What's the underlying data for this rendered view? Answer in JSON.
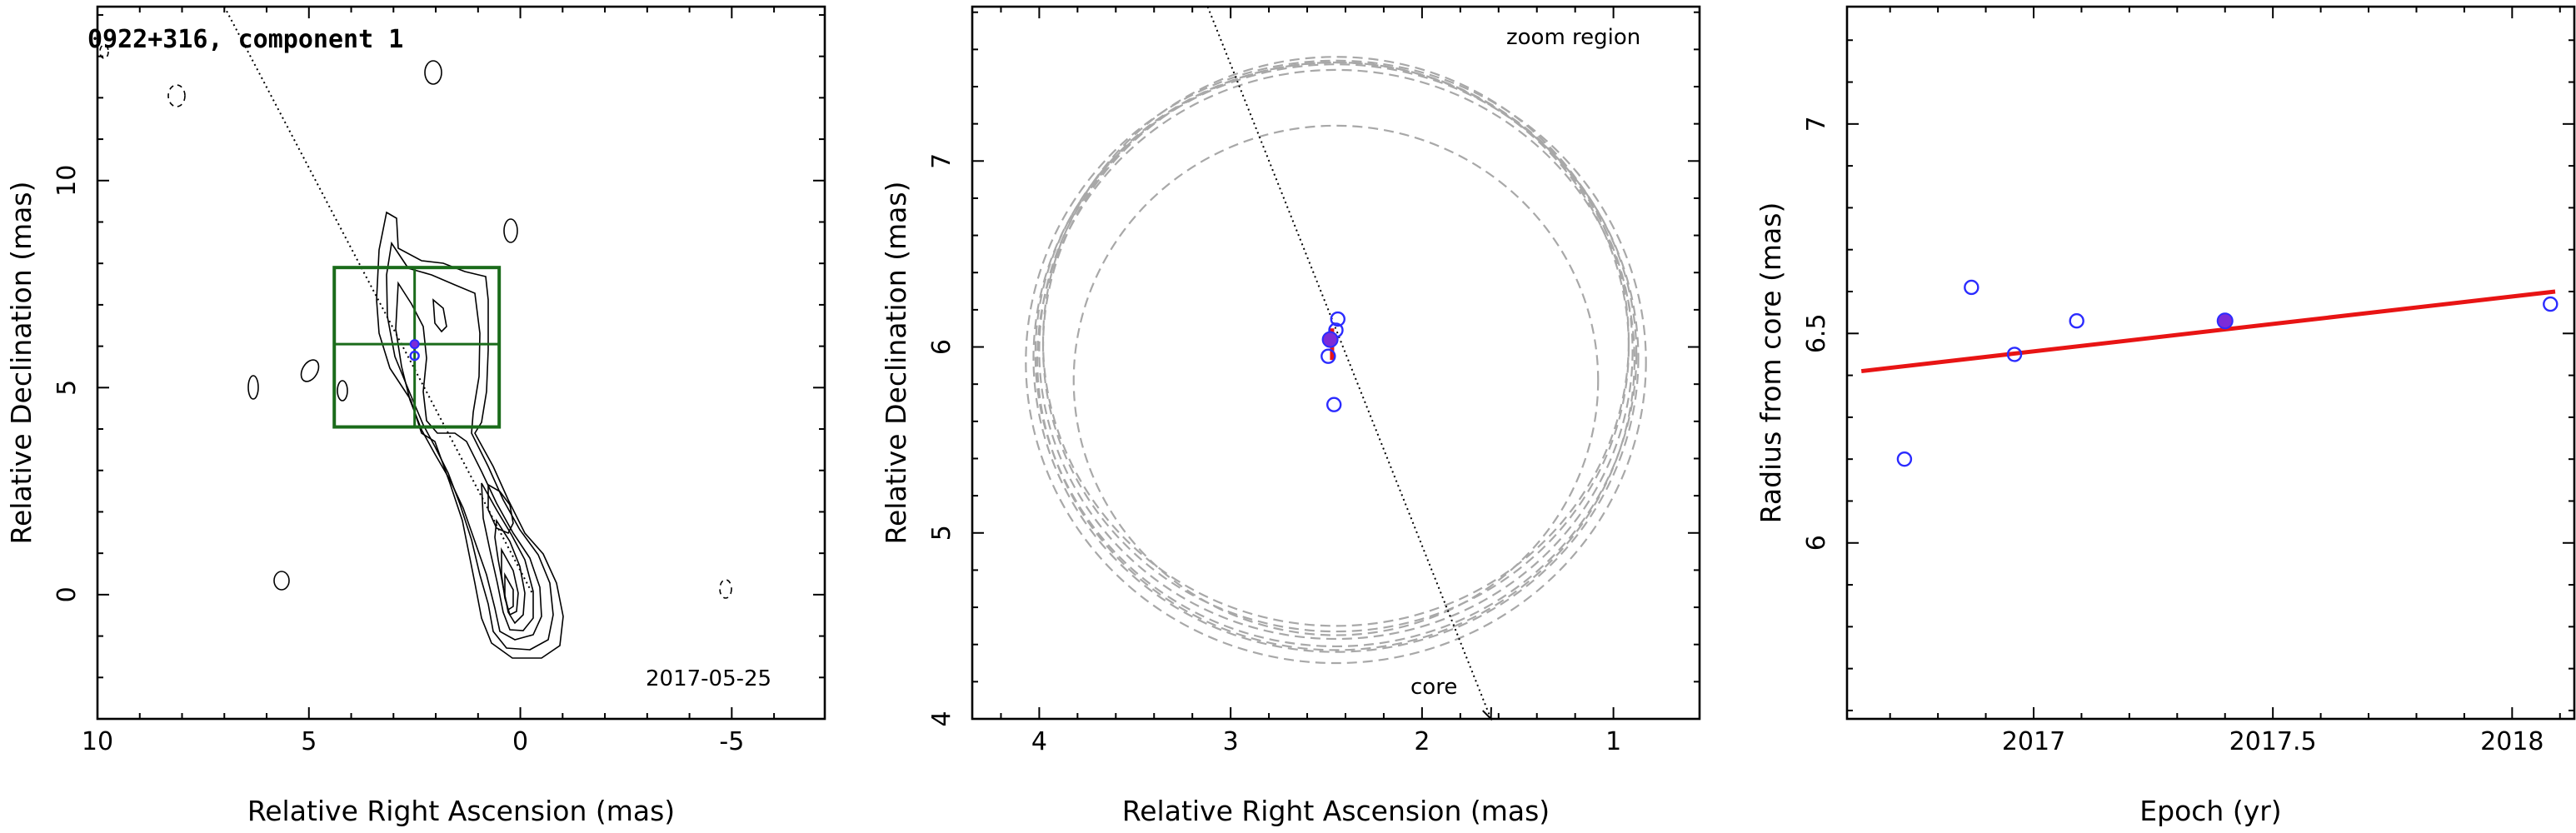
{
  "chart_data": [
    {
      "type": "contour",
      "panel": "map",
      "title": "0922+316, component 1",
      "date_label": "2017-05-25",
      "xlabel": "Relative Right Ascension (mas)",
      "ylabel": "Relative Declination (mas)",
      "xlim": [
        10,
        -7.2
      ],
      "ylim": [
        -3,
        14.2
      ],
      "xticks": [
        10,
        5,
        0,
        -5
      ],
      "yticks": [
        0,
        5,
        10
      ],
      "component_position": {
        "ra": 2.5,
        "dec": 6.05
      },
      "zoom_region": {
        "ra": [
          4.4,
          0.5
        ],
        "dec": [
          4.05,
          7.9
        ]
      },
      "direction_line": {
        "from": {
          "ra": 7.0,
          "dec": 14.2
        },
        "to": {
          "ra": -0.3,
          "dec": 0.0
        }
      }
    },
    {
      "type": "scatter",
      "panel": "zoom",
      "annotation": "zoom region",
      "core_label": "core",
      "xlabel": "Relative Right Ascension (mas)",
      "ylabel": "Relative Declination (mas)",
      "xlim": [
        4.35,
        0.55
      ],
      "ylim": [
        4.0,
        7.83
      ],
      "xticks": [
        4,
        3,
        2,
        1
      ],
      "yticks": [
        4,
        5,
        6,
        7
      ],
      "points_open": [
        {
          "ra": 2.44,
          "dec": 6.15
        },
        {
          "ra": 2.45,
          "dec": 6.09
        },
        {
          "ra": 2.49,
          "dec": 5.95
        },
        {
          "ra": 2.46,
          "dec": 5.69
        }
      ],
      "point_filled": {
        "ra": 2.48,
        "dec": 6.04
      },
      "error_bar": {
        "ra": 2.47,
        "dec_from": 5.93,
        "dec_to": 6.1
      },
      "circles": [
        {
          "ra": 2.45,
          "dec": 5.98,
          "r": 1.55
        },
        {
          "ra": 2.45,
          "dec": 6.0,
          "r": 1.53
        },
        {
          "ra": 2.45,
          "dec": 6.03,
          "r": 1.53
        },
        {
          "ra": 2.45,
          "dec": 5.96,
          "r": 1.57
        },
        {
          "ra": 2.45,
          "dec": 5.93,
          "r": 1.56
        },
        {
          "ra": 2.45,
          "dec": 5.92,
          "r": 1.62
        },
        {
          "ra": 2.45,
          "dec": 5.94,
          "r": 1.58
        },
        {
          "ra": 2.45,
          "dec": 5.82,
          "r": 1.37
        }
      ],
      "direction_line": {
        "from": {
          "ra": 3.12,
          "dec": 7.83
        },
        "to": {
          "ra": 1.64,
          "dec": 4.0
        }
      }
    },
    {
      "type": "scatter",
      "panel": "radius",
      "xlabel": "Epoch (yr)",
      "ylabel": "Radius from core (mas)",
      "xlim": [
        16.61,
        18.13
      ],
      "xticks": [
        17,
        17.5,
        18
      ],
      "xtick_labels": [
        "2017",
        "2017.5",
        "2018"
      ],
      "ylim": [
        5.58,
        7.28
      ],
      "yticks": [
        6,
        6.5,
        7
      ],
      "ytick_labels": [
        "6",
        "6.5",
        "7"
      ],
      "points_open": [
        {
          "epoch": 16.73,
          "radius": 6.2
        },
        {
          "epoch": 16.87,
          "radius": 6.61
        },
        {
          "epoch": 16.96,
          "radius": 6.45
        },
        {
          "epoch": 17.09,
          "radius": 6.53
        },
        {
          "epoch": 18.08,
          "radius": 6.57
        }
      ],
      "point_filled": {
        "epoch": 17.4,
        "radius": 6.53
      },
      "fit_line": {
        "x": [
          16.64,
          18.09
        ],
        "y": [
          6.41,
          6.6
        ]
      }
    }
  ]
}
